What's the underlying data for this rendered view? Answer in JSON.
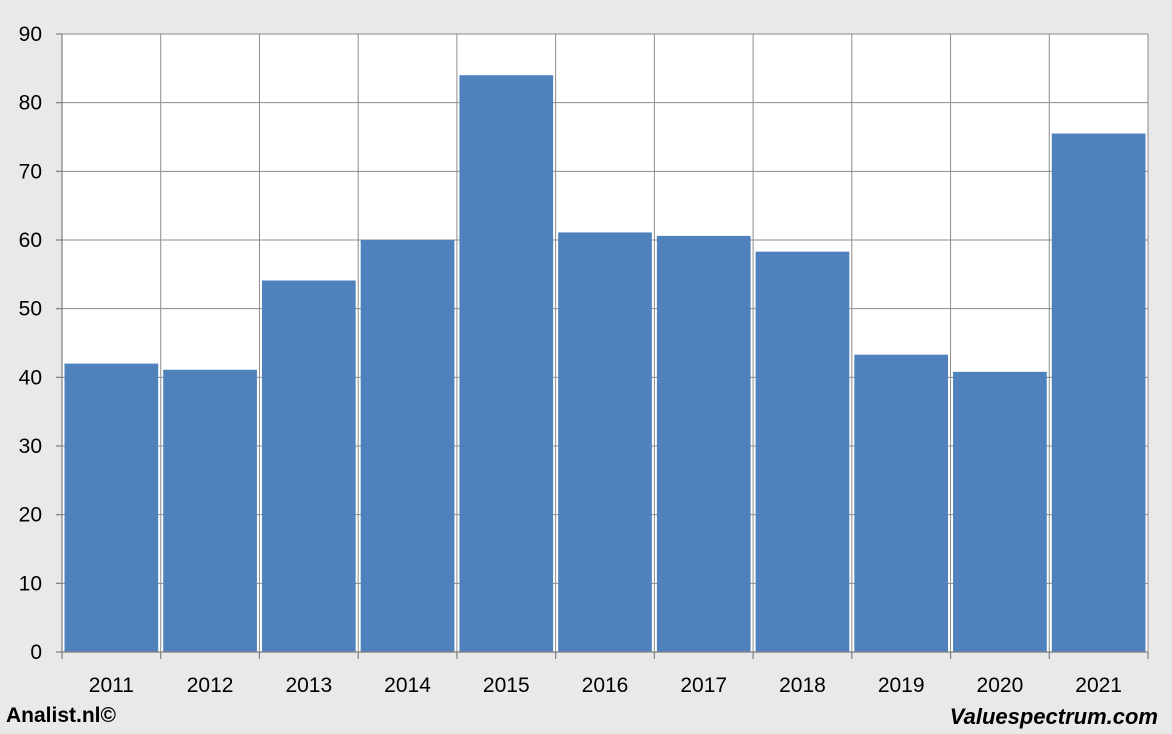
{
  "footer": {
    "left_text": "Analist.nl©",
    "right_text": "Valuespectrum.com"
  },
  "colors": {
    "bar": "#4f81bd",
    "grid": "#8c8c8c",
    "plot_background": "#ffffff",
    "page_background": "#e9e9e9"
  },
  "chart_data": {
    "type": "bar",
    "title": "",
    "xlabel": "",
    "ylabel": "",
    "categories": [
      "2011",
      "2012",
      "2013",
      "2014",
      "2015",
      "2016",
      "2017",
      "2018",
      "2019",
      "2020",
      "2021"
    ],
    "values": [
      42,
      41.1,
      54.1,
      60,
      84,
      61.1,
      60.6,
      58.3,
      43.3,
      40.8,
      75.5
    ],
    "ylim": [
      0,
      90
    ],
    "yticks": [
      0,
      10,
      20,
      30,
      40,
      50,
      60,
      70,
      80,
      90
    ],
    "grid": true,
    "legend": "none"
  }
}
